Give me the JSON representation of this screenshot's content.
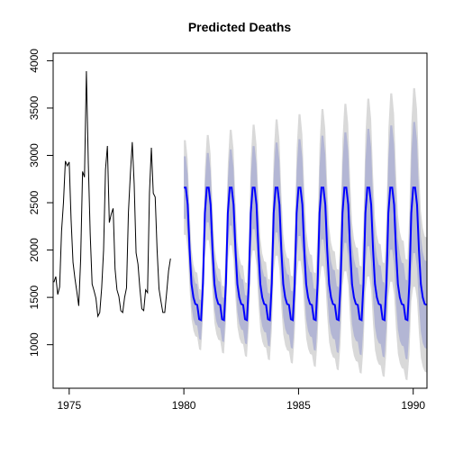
{
  "chart_data": {
    "type": "line",
    "title": "Predicted Deaths",
    "xlabel": "",
    "ylabel": "",
    "xlim": [
      1974.3,
      1990.6
    ],
    "ylim": [
      540,
      4080
    ],
    "x_ticks": [
      1975,
      1980,
      1985,
      1990
    ],
    "x_tick_labels": [
      "1975",
      "1980",
      "1985",
      "1990"
    ],
    "y_ticks": [
      1000,
      1500,
      2000,
      2500,
      3000,
      3500,
      4000
    ],
    "y_tick_labels": [
      "1000",
      "1500",
      "2000",
      "2500",
      "3000",
      "3500",
      "4000"
    ],
    "grid": false,
    "legend": "none",
    "colors": {
      "observed": "#000000",
      "forecast": "#0000ff",
      "inner_band": "#b3b6d4",
      "outer_band": "#d9d9d9"
    },
    "observed": {
      "start": 1974.333,
      "step": 0.08333,
      "values": [
        1660,
        1720,
        1530,
        1610,
        2200,
        2500,
        2940,
        2890,
        2930,
        2320,
        1870,
        1700,
        1560,
        1410,
        1900,
        2830,
        2770,
        3890,
        2920,
        2170,
        1640,
        1570,
        1490,
        1300,
        1340,
        1600,
        2000,
        2850,
        3100,
        2290,
        2380,
        2440,
        1800,
        1580,
        1510,
        1360,
        1340,
        1500,
        1600,
        2400,
        2800,
        3140,
        2700,
        1970,
        1850,
        1590,
        1380,
        1360,
        1580,
        1550,
        2600,
        3080,
        2600,
        2560,
        2000,
        1590,
        1460,
        1340,
        1340,
        1550,
        1780,
        1910
      ]
    },
    "forecast": {
      "start": 1980.0,
      "step": 0.08333,
      "pattern": [
        2660,
        2660,
        2480,
        2000,
        1640,
        1500,
        1430,
        1420,
        1270,
        1260,
        1650,
        2390
      ],
      "inner_half_width": [
        330,
        330,
        320,
        280,
        240,
        230,
        220,
        220,
        210,
        210,
        250,
        310
      ],
      "outer_half_width": [
        500,
        500,
        480,
        420,
        370,
        350,
        340,
        340,
        320,
        320,
        380,
        470
      ],
      "band_growth": 0.11,
      "points": 128
    }
  }
}
